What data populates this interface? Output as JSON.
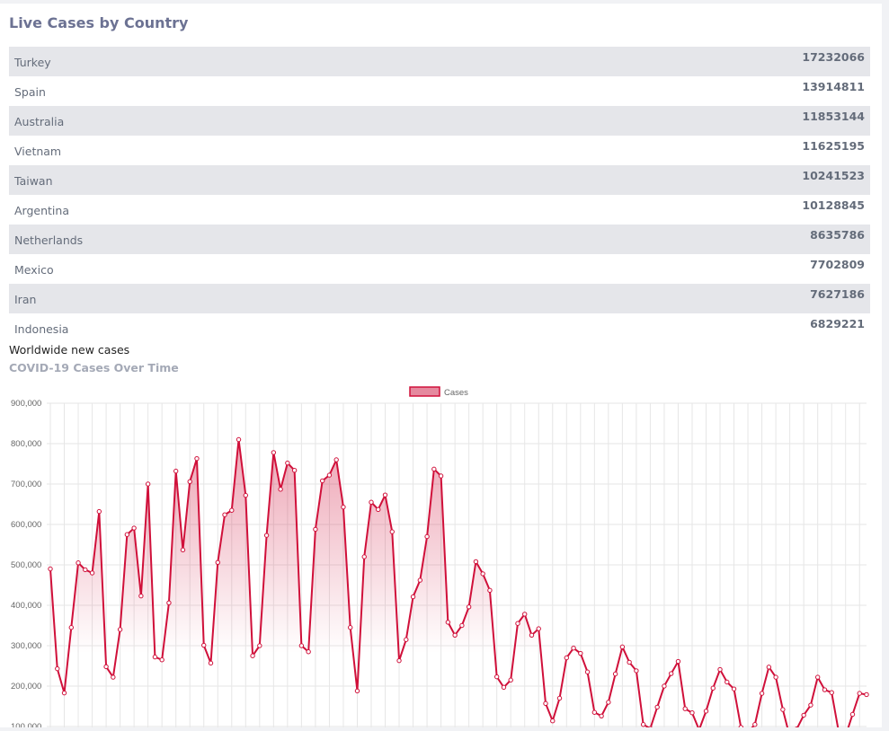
{
  "card": {
    "title": "Live Cases by Country"
  },
  "countries": [
    {
      "name": "Turkey",
      "cases": "17232066"
    },
    {
      "name": "Spain",
      "cases": "13914811"
    },
    {
      "name": "Australia",
      "cases": "11853144"
    },
    {
      "name": "Vietnam",
      "cases": "11625195"
    },
    {
      "name": "Taiwan",
      "cases": "10241523"
    },
    {
      "name": "Argentina",
      "cases": "10128845"
    },
    {
      "name": "Netherlands",
      "cases": "8635786"
    },
    {
      "name": "Mexico",
      "cases": "7702809"
    },
    {
      "name": "Iran",
      "cases": "7627186"
    },
    {
      "name": "Indonesia",
      "cases": "6829221"
    }
  ],
  "section": {
    "title": "Worldwide new cases",
    "subtitle": "COVID-19 Cases Over Time"
  },
  "colors": {
    "line": "#d0103a",
    "fill_top": "#d0103a",
    "grid": "#e6e6e6",
    "legend_fill": "#e58a9f"
  },
  "chart_data": {
    "type": "area",
    "legend": [
      "Cases"
    ],
    "legend_position": "top",
    "grid": true,
    "ylim": [
      100000,
      900000
    ],
    "yticks": [
      "900,000",
      "800,000",
      "700,000",
      "600,000",
      "500,000",
      "400,000",
      "300,000",
      "200,000",
      "100,000"
    ],
    "series": [
      {
        "name": "Cases",
        "values": [
          490000,
          243000,
          183000,
          345000,
          505000,
          488000,
          480000,
          632000,
          248000,
          222000,
          340000,
          575000,
          591000,
          423000,
          700000,
          272000,
          265000,
          406000,
          732000,
          537000,
          706000,
          763000,
          301000,
          257000,
          506000,
          624000,
          635000,
          810000,
          672000,
          275000,
          300000,
          573000,
          778000,
          687000,
          752000,
          734000,
          300000,
          285000,
          588000,
          708000,
          722000,
          760000,
          643000,
          345000,
          188000,
          520000,
          655000,
          637000,
          673000,
          582000,
          263000,
          315000,
          421000,
          462000,
          570000,
          737000,
          720000,
          358000,
          326000,
          350000,
          396000,
          508000,
          478000,
          437000,
          223000,
          197000,
          215000,
          355000,
          378000,
          326000,
          342000,
          157000,
          114000,
          170000,
          270000,
          294000,
          281000,
          235000,
          135000,
          126000,
          160000,
          230000,
          297000,
          259000,
          238000,
          105000,
          95000,
          148000,
          200000,
          231000,
          261000,
          144000,
          134000,
          92000,
          138000,
          195000,
          241000,
          210000,
          193000,
          98000,
          86000,
          105000,
          182000,
          247000,
          222000,
          142000,
          75000,
          94000,
          128000,
          153000,
          222000,
          191000,
          184000,
          88000,
          77000,
          130000,
          182000,
          179000
        ]
      }
    ]
  }
}
